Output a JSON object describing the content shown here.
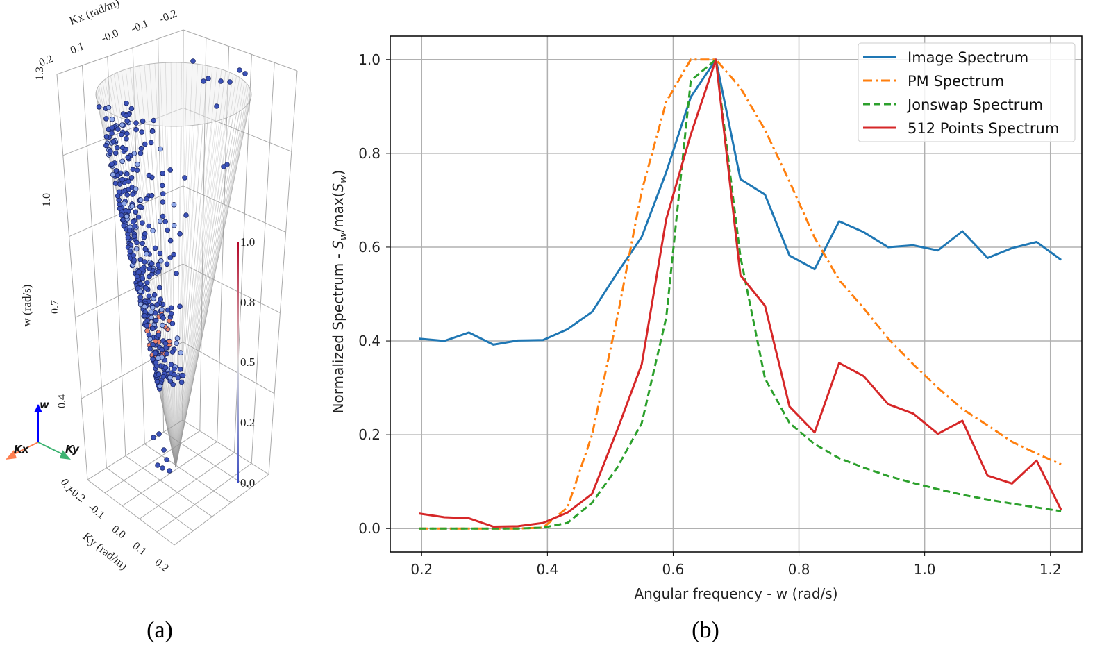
{
  "captions": {
    "a": "(a)",
    "b": "(b)"
  },
  "panel_a": {
    "type": "scatter3d",
    "axes": {
      "kx_label": "Kx (rad/m)",
      "ky_label": "Ky (rad/m)",
      "w_label": "w (rad/s)",
      "kx_ticks": [
        "0.2",
        "0.1",
        "-0.0",
        "-0.1",
        "-0.2"
      ],
      "ky_ticks": [
        "0.1",
        "-0.2",
        "-0.1",
        "0.0",
        "0.1",
        "0.2"
      ],
      "w_ticks": [
        "1.3",
        "1.0",
        "0.7",
        "0.4"
      ]
    },
    "colorbar": {
      "ticks": [
        "1.0",
        "0.8",
        "0.5",
        "0.2",
        "0.0"
      ],
      "colormap": "coolwarm",
      "range": [
        0,
        1
      ]
    },
    "triad": {
      "w": "w",
      "kx": "Kx",
      "ky": "Ky",
      "colors": {
        "w": "#0000ff",
        "kx": "#ff7f50",
        "ky": "#3cb371"
      }
    }
  },
  "chart_data": {
    "type": "line",
    "xlabel": "Angular frequency - w (rad/s)",
    "ylabel": {
      "prefix": "Normalized Spectrum - ",
      "s": "S",
      "sub": "w",
      "mid": "/max(",
      "s2": "S",
      "sub2": "w",
      "suffix": ")"
    },
    "xlim": [
      0.15,
      1.25
    ],
    "ylim": [
      -0.05,
      1.05
    ],
    "xticks": [
      "0.2",
      "0.4",
      "0.6",
      "0.8",
      "1.0",
      "1.2"
    ],
    "yticks": [
      "0.0",
      "0.2",
      "0.4",
      "0.6",
      "0.8",
      "1.0"
    ],
    "grid": true,
    "legend_position": "top-right",
    "x": [
      0.196,
      0.236,
      0.275,
      0.314,
      0.353,
      0.393,
      0.432,
      0.471,
      0.511,
      0.55,
      0.589,
      0.628,
      0.668,
      0.707,
      0.746,
      0.785,
      0.825,
      0.864,
      0.903,
      0.942,
      0.982,
      1.021,
      1.06,
      1.1,
      1.139,
      1.178,
      1.217
    ],
    "series": [
      {
        "name": "Image Spectrum",
        "color": "#1f77b4",
        "style": "solid",
        "values": [
          0.405,
          0.4,
          0.418,
          0.392,
          0.401,
          0.402,
          0.425,
          0.462,
          0.545,
          0.622,
          0.76,
          0.92,
          1.0,
          0.745,
          0.712,
          0.582,
          0.553,
          0.655,
          0.632,
          0.6,
          0.604,
          0.593,
          0.634,
          0.577,
          0.598,
          0.611,
          0.573
        ]
      },
      {
        "name": "PM Spectrum",
        "color": "#ff7f0e",
        "style": "dashdot",
        "values": [
          0,
          0,
          0,
          0,
          0,
          0.002,
          0.045,
          0.2,
          0.45,
          0.72,
          0.91,
          1.0,
          1.0,
          0.94,
          0.85,
          0.74,
          0.62,
          0.53,
          0.47,
          0.405,
          0.35,
          0.3,
          0.255,
          0.22,
          0.185,
          0.16,
          0.137
        ]
      },
      {
        "name": "Jonswap Spectrum",
        "color": "#2ca02c",
        "style": "dashed",
        "values": [
          0,
          0,
          0,
          0,
          0,
          0.002,
          0.012,
          0.055,
          0.13,
          0.225,
          0.45,
          0.955,
          1.0,
          0.58,
          0.32,
          0.225,
          0.18,
          0.15,
          0.13,
          0.112,
          0.097,
          0.084,
          0.072,
          0.062,
          0.053,
          0.045,
          0.037
        ]
      },
      {
        "name": "512 Points Spectrum",
        "color": "#d62728",
        "style": "solid",
        "values": [
          0.032,
          0.024,
          0.022,
          0.004,
          0.005,
          0.012,
          0.034,
          0.074,
          0.21,
          0.35,
          0.66,
          0.84,
          1.0,
          0.54,
          0.475,
          0.26,
          0.205,
          0.353,
          0.325,
          0.265,
          0.245,
          0.202,
          0.23,
          0.113,
          0.096,
          0.145,
          0.04
        ]
      }
    ]
  }
}
